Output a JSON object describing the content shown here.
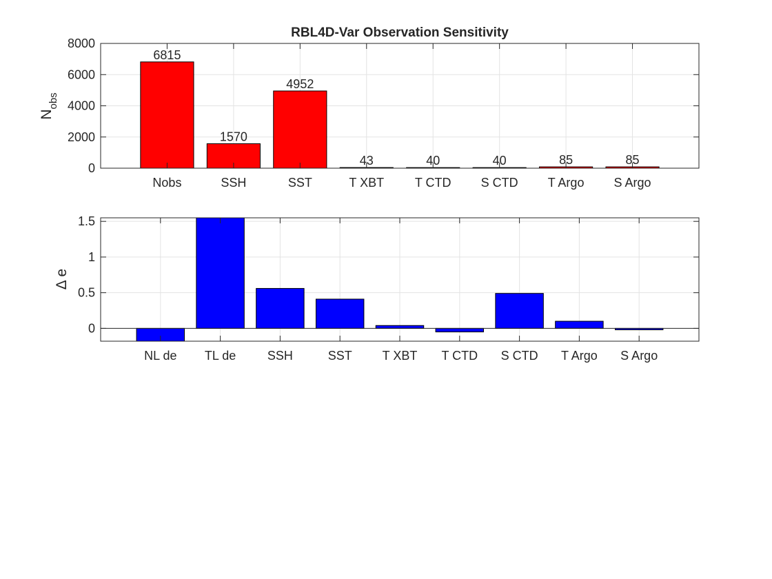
{
  "chart_data": [
    {
      "type": "bar",
      "title": "RBL4D-Var Observation Sensitivity",
      "ylabel": "N",
      "ylabel_subscript": "obs",
      "xlabel": "",
      "categories": [
        "Nobs",
        "SSH",
        "SST",
        "T XBT",
        "T CTD",
        "S CTD",
        "T Argo",
        "S Argo"
      ],
      "values": [
        6815,
        1570,
        4952,
        43,
        40,
        40,
        85,
        85
      ],
      "data_labels": [
        "6815",
        "1570",
        "4952",
        "43",
        "40",
        "40",
        "85",
        "85"
      ],
      "ylim": [
        0,
        8000
      ],
      "yticks": [
        0,
        2000,
        4000,
        6000,
        8000
      ],
      "xlim": [
        0,
        9
      ],
      "grid": true,
      "bar_color": "#ff0000"
    },
    {
      "type": "bar",
      "title": "",
      "ylabel": "Δ e",
      "xlabel": "",
      "categories": [
        "NL de",
        "TL de",
        "SSH",
        "SST",
        "T XBT",
        "T CTD",
        "S CTD",
        "T Argo",
        "S Argo"
      ],
      "values": [
        -0.18,
        1.7,
        0.56,
        0.41,
        0.04,
        -0.05,
        0.49,
        0.1,
        -0.02
      ],
      "ylim": [
        -0.18,
        1.55
      ],
      "yticks": [
        0,
        0.5,
        1,
        1.5
      ],
      "ytick_labels": [
        "0",
        "0.5",
        "1",
        "1.5"
      ],
      "xlim": [
        0,
        10
      ],
      "grid": true,
      "bar_color": "#0000ff"
    }
  ]
}
